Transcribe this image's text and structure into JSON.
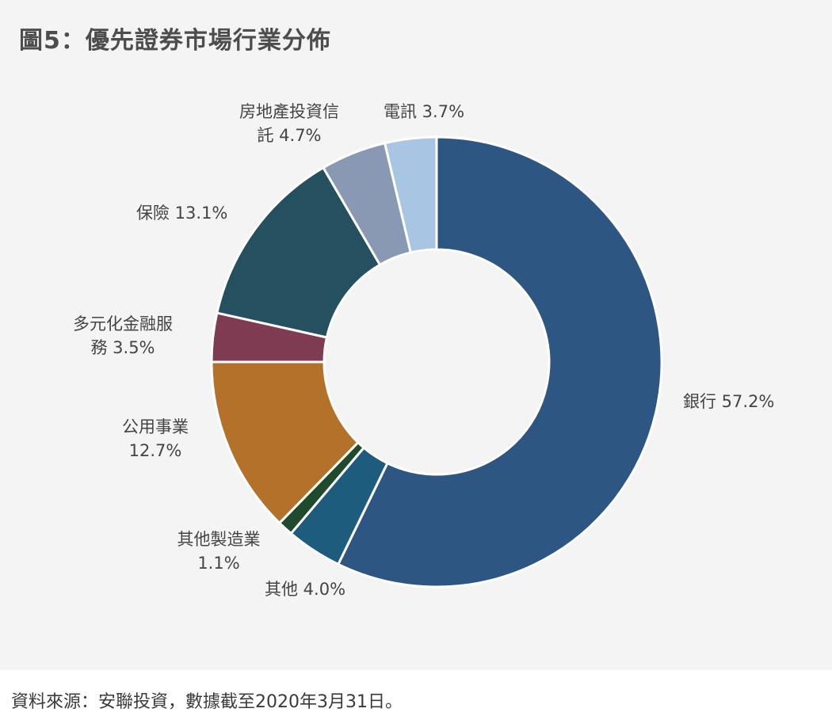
{
  "title": "圖5：優先證券市場行業分佈",
  "source": "資料來源：安聯投資，數據截至2020年3月31日。",
  "chart_data": {
    "type": "pie",
    "donut": true,
    "unit": "%",
    "title": "圖5：優先證券市場行業分佈",
    "slices": [
      {
        "label": "銀行",
        "value": 57.2,
        "value_text": "57.2%",
        "color": "#2d5682"
      },
      {
        "label": "其他",
        "value": 4.0,
        "value_text": "4.0%",
        "color": "#1e5c7d"
      },
      {
        "label": "其他製造業",
        "value": 1.1,
        "value_text": "1.1%",
        "color": "#1f4a2b"
      },
      {
        "label": "公用事業",
        "value": 12.7,
        "value_text": "12.7%",
        "color": "#b4712a"
      },
      {
        "label": "多元化金融服務",
        "value": 3.5,
        "value_text": "3.5%",
        "color": "#7e3b52"
      },
      {
        "label": "保險",
        "value": 13.1,
        "value_text": "13.1%",
        "color": "#25505f"
      },
      {
        "label": "房地產投資信託",
        "value": 4.7,
        "value_text": "4.7%",
        "color": "#8a99b3"
      },
      {
        "label": "電訊",
        "value": 3.7,
        "value_text": "3.7%",
        "color": "#a8c6e4"
      }
    ]
  },
  "labels": {
    "bank": "銀行 57.2%",
    "other": "其他 4.0%",
    "mfg_line1": "其他製造業",
    "mfg_line2": "1.1%",
    "util_line1": "公用事業",
    "util_line2": "12.7%",
    "divfin_line1": "多元化金融服",
    "divfin_line2": "務 3.5%",
    "ins": "保險 13.1%",
    "reit_line1": "房地產投資信",
    "reit_line2": "託 4.7%",
    "telecom": "電訊 3.7%"
  }
}
